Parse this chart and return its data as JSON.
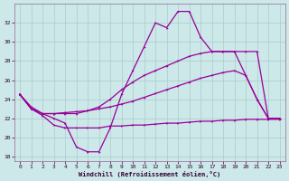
{
  "xlabel": "Windchill (Refroidissement éolien,°C)",
  "background_color": "#cce8e8",
  "line_color": "#990099",
  "grid_color": "#aacccc",
  "xlim": [
    -0.5,
    23.5
  ],
  "ylim": [
    17.5,
    34.0
  ],
  "yticks": [
    18,
    20,
    22,
    24,
    26,
    28,
    30,
    32
  ],
  "xticks": [
    0,
    1,
    2,
    3,
    4,
    5,
    6,
    7,
    8,
    9,
    10,
    11,
    12,
    13,
    14,
    15,
    16,
    17,
    18,
    19,
    20,
    21,
    22,
    23
  ],
  "line1_x": [
    0,
    1,
    2,
    3,
    4,
    5,
    6,
    7,
    8,
    9,
    10,
    11,
    12,
    13,
    14,
    15,
    16,
    17,
    18,
    19,
    20,
    21,
    22,
    23
  ],
  "line1_y": [
    24.5,
    23.0,
    22.5,
    22.0,
    21.5,
    19.0,
    18.5,
    18.5,
    21.0,
    24.5,
    27.0,
    29.5,
    32.0,
    31.5,
    33.2,
    33.2,
    30.5,
    29.0,
    29.0,
    29.0,
    26.5,
    24.0,
    22.0,
    22.0
  ],
  "line2_x": [
    0,
    1,
    2,
    3,
    4,
    5,
    6,
    7,
    8,
    9,
    10,
    11,
    12,
    13,
    14,
    15,
    16,
    17,
    18,
    19,
    20,
    21,
    22,
    23
  ],
  "line2_y": [
    24.5,
    23.0,
    22.3,
    21.3,
    21.0,
    21.0,
    21.0,
    21.0,
    21.2,
    21.2,
    21.3,
    21.3,
    21.4,
    21.5,
    21.5,
    21.6,
    21.7,
    21.7,
    21.8,
    21.8,
    21.9,
    21.9,
    21.9,
    21.9
  ],
  "line3_x": [
    0,
    1,
    2,
    3,
    4,
    5,
    6,
    7,
    8,
    9,
    10,
    11,
    12,
    13,
    14,
    15,
    16,
    17,
    18,
    19,
    20,
    21,
    22,
    23
  ],
  "line3_y": [
    24.5,
    23.2,
    22.5,
    22.5,
    22.6,
    22.7,
    22.8,
    23.0,
    23.2,
    23.5,
    23.8,
    24.2,
    24.6,
    25.0,
    25.4,
    25.8,
    26.2,
    26.5,
    26.8,
    27.0,
    26.5,
    24.0,
    22.0,
    22.0
  ],
  "line4_x": [
    0,
    1,
    2,
    3,
    4,
    5,
    6,
    7,
    8,
    9,
    10,
    11,
    12,
    13,
    14,
    15,
    16,
    17,
    18,
    19,
    20,
    21,
    22,
    23
  ],
  "line4_y": [
    24.5,
    23.0,
    22.5,
    22.5,
    22.5,
    22.5,
    22.8,
    23.2,
    24.0,
    25.0,
    25.8,
    26.5,
    27.0,
    27.5,
    28.0,
    28.5,
    28.8,
    29.0,
    29.0,
    29.0,
    29.0,
    29.0,
    22.0,
    22.0
  ]
}
